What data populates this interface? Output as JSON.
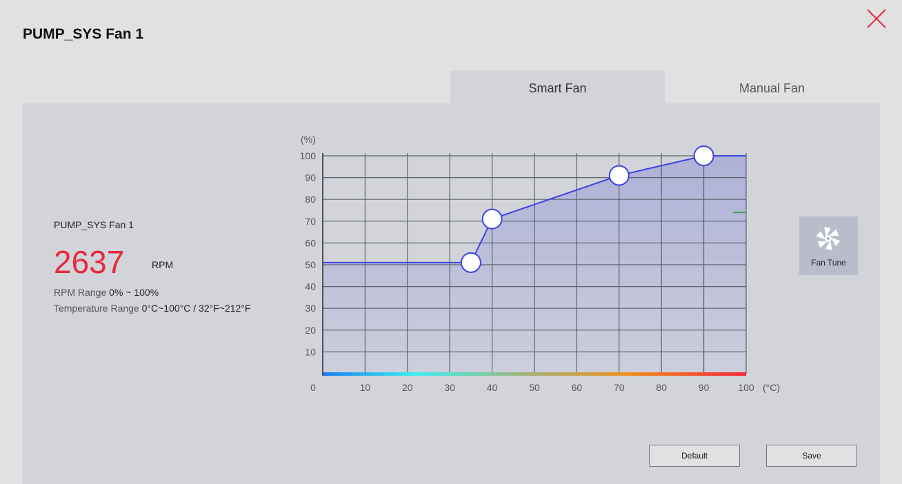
{
  "window": {
    "title": "PUMP_SYS Fan 1"
  },
  "tabs": [
    {
      "label": "Smart Fan",
      "active": true
    },
    {
      "label": "Manual Fan",
      "active": false
    }
  ],
  "info": {
    "fan_name": "PUMP_SYS Fan 1",
    "rpm": "2637",
    "rpm_unit": "RPM",
    "rpm_range_label": "RPM Range",
    "rpm_range": "0% ~ 100%",
    "temp_range_label": "Temperature Range",
    "temp_range": "0°C~100°C / 32°F~212°F"
  },
  "fan_tune": {
    "label": "Fan Tune",
    "icon": "fan-icon"
  },
  "buttons": {
    "default": "Default",
    "save": "Save"
  },
  "colors": {
    "rpm": "#e8283c",
    "curve": "#3a44e0",
    "fill": "#aeb1d8",
    "close": "#e8283c",
    "current_marker": "#3aa24a"
  },
  "chart_data": {
    "type": "line",
    "ylabel": "(%)",
    "xlabel": "(°C)",
    "xlim": [
      0,
      100
    ],
    "ylim": [
      0,
      100
    ],
    "x_ticks": [
      "0",
      "10",
      "20",
      "30",
      "40",
      "50",
      "60",
      "70",
      "80",
      "90",
      "100"
    ],
    "y_ticks": [
      "10",
      "20",
      "30",
      "40",
      "50",
      "60",
      "70",
      "80",
      "90",
      "100"
    ],
    "grid": true,
    "series": [
      {
        "points": [
          [
            0,
            51
          ],
          [
            35,
            51
          ],
          [
            40,
            71
          ],
          [
            70,
            91
          ],
          [
            90,
            101
          ],
          [
            100,
            101
          ]
        ]
      }
    ],
    "control_points": [
      [
        35,
        51
      ],
      [
        40,
        71
      ],
      [
        70,
        91
      ],
      [
        90,
        101
      ]
    ],
    "current_marker": 74
  }
}
